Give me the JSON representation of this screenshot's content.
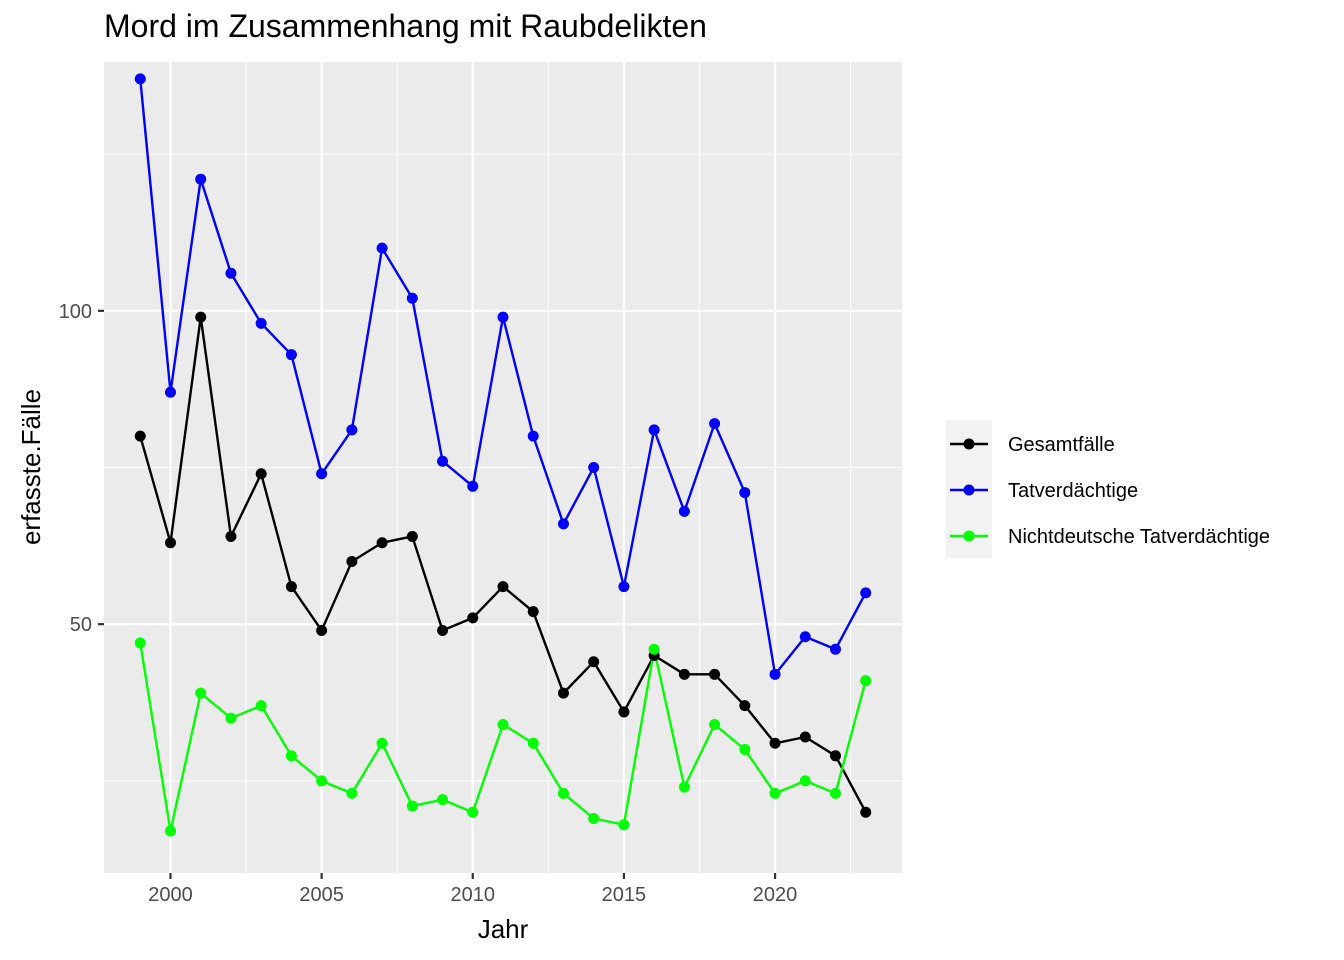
{
  "chart_data": {
    "type": "line",
    "title": "Mord im Zusammenhang mit Raubdelikten",
    "xlabel": "Jahr",
    "ylabel": "erfasste.Fälle",
    "x": [
      1999,
      2000,
      2001,
      2002,
      2003,
      2004,
      2005,
      2006,
      2007,
      2008,
      2009,
      2010,
      2011,
      2012,
      2013,
      2014,
      2015,
      2016,
      2017,
      2018,
      2019,
      2020,
      2021,
      2022,
      2023
    ],
    "xlim": [
      1997.8,
      2024.2
    ],
    "ylim": [
      10.3,
      139.7
    ],
    "x_ticks": [
      2000,
      2005,
      2010,
      2015,
      2020
    ],
    "y_ticks": [
      50,
      100
    ],
    "grid": true,
    "legend_position": "right",
    "series": [
      {
        "name": "Gesamtfälle",
        "color": "#000000",
        "values": [
          80,
          63,
          99,
          64,
          74,
          56,
          49,
          60,
          63,
          64,
          49,
          51,
          56,
          52,
          39,
          44,
          36,
          45,
          42,
          42,
          37,
          31,
          32,
          29,
          20
        ]
      },
      {
        "name": "Tatverdächtige",
        "color": "#0000FF",
        "values": [
          137,
          87,
          121,
          106,
          98,
          93,
          74,
          81,
          110,
          102,
          76,
          72,
          99,
          80,
          66,
          75,
          56,
          81,
          68,
          82,
          71,
          42,
          48,
          46,
          55
        ]
      },
      {
        "name": "Nichtdeutsche Tatverdächtige",
        "color": "#00FF00",
        "values": [
          47,
          17,
          39,
          35,
          37,
          29,
          25,
          23,
          31,
          21,
          22,
          20,
          34,
          31,
          23,
          19,
          18,
          46,
          24,
          34,
          30,
          23,
          25,
          23,
          41
        ]
      }
    ]
  }
}
